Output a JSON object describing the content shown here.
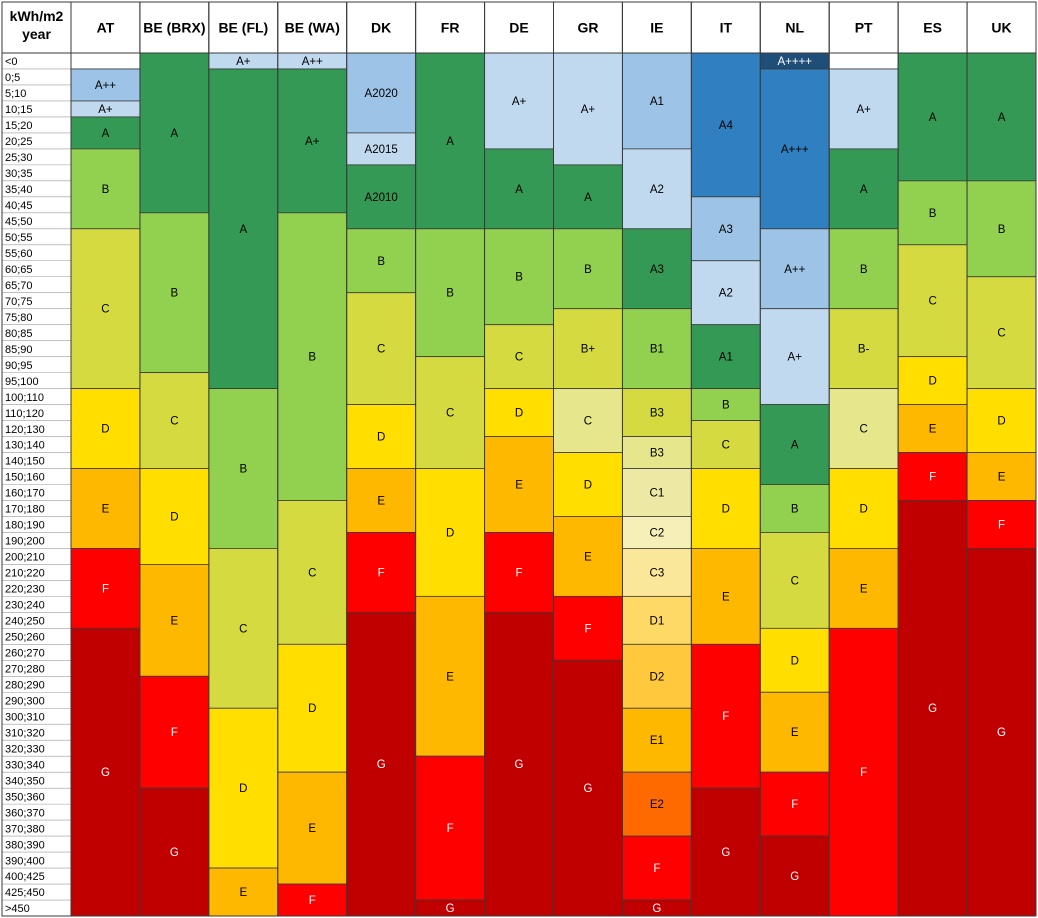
{
  "chart_data": {
    "type": "table",
    "corner_header": [
      "kWh/m2",
      "year"
    ],
    "rows": [
      "<0",
      "0;5",
      "5;10",
      "10;15",
      "15;20",
      "20;25",
      "25;30",
      "30;35",
      "35;40",
      "40;45",
      "45;50",
      "50;55",
      "55;60",
      "60;65",
      "65;70",
      "70;75",
      "75;80",
      "80;85",
      "85;90",
      "90;95",
      "95;100",
      "100;110",
      "110;120",
      "120;130",
      "130;140",
      "140;150",
      "150;160",
      "160;170",
      "170;180",
      "180;190",
      "190;200",
      "200;210",
      "210;220",
      "220;230",
      "230;240",
      "240;250",
      "250;260",
      "260;270",
      "270;280",
      "280;290",
      "290;300",
      "300;310",
      "310;320",
      "320;330",
      "330;340",
      "340;350",
      "350;360",
      "360;370",
      "370;380",
      "380;390",
      "390;400",
      "400;425",
      "425;450",
      ">450"
    ],
    "colors": {
      "A4": "#2F7FC1",
      "A++++": "#1F4E79",
      "A+++": "#2F7FC1",
      "lightblue": "#C0D9EE",
      "midblue": "#9DC3E6",
      "darkgreen": "#339954",
      "lightgreen": "#92D050",
      "yellowgreen": "#D4DA3F",
      "yellow": "#FFDE00",
      "orange": "#FFB800",
      "red": "#FF0000",
      "darkred": "#C00000",
      "paleyellow": "#E6E68C",
      "cream1": "#EEE8A5",
      "cream2": "#F6F0B8",
      "cream3": "#FBE79A",
      "gold1": "#FFD966",
      "gold2": "#FFC83D",
      "deeporange": "#FF6A00"
    },
    "countries": [
      {
        "name": "AT",
        "bands": [
          {
            "label": "",
            "from": 0,
            "to": 1,
            "color": "#ffffff"
          },
          {
            "label": "A++",
            "from": 1,
            "to": 3,
            "color": "#9DC3E6"
          },
          {
            "label": "A+",
            "from": 3,
            "to": 4,
            "color": "#C0D9EE"
          },
          {
            "label": "A",
            "from": 4,
            "to": 6,
            "color": "#339954"
          },
          {
            "label": "B",
            "from": 6,
            "to": 11,
            "color": "#92D050"
          },
          {
            "label": "C",
            "from": 11,
            "to": 21,
            "color": "#D4DA3F"
          },
          {
            "label": "D",
            "from": 21,
            "to": 26,
            "color": "#FFDE00"
          },
          {
            "label": "E",
            "from": 26,
            "to": 31,
            "color": "#FFB800"
          },
          {
            "label": "F",
            "from": 31,
            "to": 36,
            "color": "#FF0000"
          },
          {
            "label": "G",
            "from": 36,
            "to": 54,
            "color": "#C00000"
          }
        ]
      },
      {
        "name": "BE (BRX)",
        "bands": [
          {
            "label": "A",
            "from": 0,
            "to": 10,
            "color": "#339954"
          },
          {
            "label": "B",
            "from": 10,
            "to": 20,
            "color": "#92D050"
          },
          {
            "label": "C",
            "from": 20,
            "to": 26,
            "color": "#D4DA3F"
          },
          {
            "label": "D",
            "from": 26,
            "to": 32,
            "color": "#FFDE00"
          },
          {
            "label": "E",
            "from": 32,
            "to": 39,
            "color": "#FFB800"
          },
          {
            "label": "F",
            "from": 39,
            "to": 46,
            "color": "#FF0000"
          },
          {
            "label": "G",
            "from": 46,
            "to": 54,
            "color": "#C00000"
          }
        ]
      },
      {
        "name": "BE (FL)",
        "bands": [
          {
            "label": "A+",
            "from": 0,
            "to": 1,
            "color": "#C0D9EE"
          },
          {
            "label": "A",
            "from": 1,
            "to": 21,
            "color": "#339954"
          },
          {
            "label": "B",
            "from": 21,
            "to": 31,
            "color": "#92D050"
          },
          {
            "label": "C",
            "from": 31,
            "to": 41,
            "color": "#D4DA3F"
          },
          {
            "label": "D",
            "from": 41,
            "to": 51,
            "color": "#FFDE00"
          },
          {
            "label": "E",
            "from": 51,
            "to": 54,
            "color": "#FFB800"
          }
        ]
      },
      {
        "name": "BE (WA)",
        "bands": [
          {
            "label": "A++",
            "from": 0,
            "to": 1,
            "color": "#C0D9EE"
          },
          {
            "label": "A+",
            "from": 1,
            "to": 10,
            "color": "#339954"
          },
          {
            "label": "B",
            "from": 10,
            "to": 28,
            "color": "#92D050"
          },
          {
            "label": "C",
            "from": 28,
            "to": 37,
            "color": "#D4DA3F"
          },
          {
            "label": "D",
            "from": 37,
            "to": 45,
            "color": "#FFDE00"
          },
          {
            "label": "E",
            "from": 45,
            "to": 52,
            "color": "#FFB800"
          },
          {
            "label": "F",
            "from": 52,
            "to": 54,
            "color": "#FF0000"
          }
        ]
      },
      {
        "name": "DK",
        "bands": [
          {
            "label": "A2020",
            "from": 0,
            "to": 5,
            "color": "#9DC3E6"
          },
          {
            "label": "A2015",
            "from": 5,
            "to": 7,
            "color": "#C0D9EE"
          },
          {
            "label": "A2010",
            "from": 7,
            "to": 11,
            "color": "#339954"
          },
          {
            "label": "B",
            "from": 11,
            "to": 15,
            "color": "#92D050"
          },
          {
            "label": "C",
            "from": 15,
            "to": 22,
            "color": "#D4DA3F"
          },
          {
            "label": "D",
            "from": 22,
            "to": 26,
            "color": "#FFDE00"
          },
          {
            "label": "E",
            "from": 26,
            "to": 30,
            "color": "#FFB800"
          },
          {
            "label": "F",
            "from": 30,
            "to": 35,
            "color": "#FF0000"
          },
          {
            "label": "G",
            "from": 35,
            "to": 54,
            "color": "#C00000"
          }
        ]
      },
      {
        "name": "FR",
        "bands": [
          {
            "label": "A",
            "from": 0,
            "to": 11,
            "color": "#339954"
          },
          {
            "label": "B",
            "from": 11,
            "to": 19,
            "color": "#92D050"
          },
          {
            "label": "C",
            "from": 19,
            "to": 26,
            "color": "#D4DA3F"
          },
          {
            "label": "D",
            "from": 26,
            "to": 34,
            "color": "#FFDE00"
          },
          {
            "label": "E",
            "from": 34,
            "to": 44,
            "color": "#FFB800"
          },
          {
            "label": "F",
            "from": 44,
            "to": 53,
            "color": "#FF0000"
          },
          {
            "label": "G",
            "from": 53,
            "to": 54,
            "color": "#C00000"
          }
        ]
      },
      {
        "name": "DE",
        "bands": [
          {
            "label": "A+",
            "from": 0,
            "to": 6,
            "color": "#C0D9EE"
          },
          {
            "label": "A",
            "from": 6,
            "to": 11,
            "color": "#339954"
          },
          {
            "label": "B",
            "from": 11,
            "to": 17,
            "color": "#92D050"
          },
          {
            "label": "C",
            "from": 17,
            "to": 21,
            "color": "#D4DA3F"
          },
          {
            "label": "D",
            "from": 21,
            "to": 24,
            "color": "#FFDE00"
          },
          {
            "label": "E",
            "from": 24,
            "to": 30,
            "color": "#FFB800"
          },
          {
            "label": "F",
            "from": 30,
            "to": 35,
            "color": "#FF0000"
          },
          {
            "label": "G",
            "from": 35,
            "to": 54,
            "color": "#C00000"
          }
        ]
      },
      {
        "name": "GR",
        "bands": [
          {
            "label": "A+",
            "from": 0,
            "to": 7,
            "color": "#C0D9EE"
          },
          {
            "label": "A",
            "from": 7,
            "to": 11,
            "color": "#339954"
          },
          {
            "label": "B",
            "from": 11,
            "to": 16,
            "color": "#92D050"
          },
          {
            "label": "B+",
            "from": 16,
            "to": 21,
            "color": "#D4DA3F"
          },
          {
            "label": "C",
            "from": 21,
            "to": 25,
            "color": "#E6E68C"
          },
          {
            "label": "D",
            "from": 25,
            "to": 29,
            "color": "#FFDE00"
          },
          {
            "label": "E",
            "from": 29,
            "to": 34,
            "color": "#FFB800"
          },
          {
            "label": "F",
            "from": 34,
            "to": 38,
            "color": "#FF0000"
          },
          {
            "label": "G",
            "from": 38,
            "to": 54,
            "color": "#C00000"
          }
        ]
      },
      {
        "name": "IE",
        "bands": [
          {
            "label": "A1",
            "from": 0,
            "to": 6,
            "color": "#9DC3E6"
          },
          {
            "label": "A2",
            "from": 6,
            "to": 11,
            "color": "#C0D9EE"
          },
          {
            "label": "A3",
            "from": 11,
            "to": 16,
            "color": "#339954"
          },
          {
            "label": "B1",
            "from": 16,
            "to": 21,
            "color": "#92D050"
          },
          {
            "label": "B3",
            "from": 21,
            "to": 24,
            "color": "#D4DA3F"
          },
          {
            "label": "B3",
            "from": 24,
            "to": 26,
            "color": "#E6E68C"
          },
          {
            "label": "C1",
            "from": 26,
            "to": 29,
            "color": "#EEE8A5"
          },
          {
            "label": "C2",
            "from": 29,
            "to": 31,
            "color": "#F6F0B8"
          },
          {
            "label": "C3",
            "from": 31,
            "to": 34,
            "color": "#FBE79A"
          },
          {
            "label": "D1",
            "from": 34,
            "to": 37,
            "color": "#FFD966"
          },
          {
            "label": "D2",
            "from": 37,
            "to": 41,
            "color": "#FFC83D"
          },
          {
            "label": "E1",
            "from": 41,
            "to": 45,
            "color": "#FFB800"
          },
          {
            "label": "E2",
            "from": 45,
            "to": 49,
            "color": "#FF6A00"
          },
          {
            "label": "F",
            "from": 49,
            "to": 53,
            "color": "#FF0000"
          },
          {
            "label": "G",
            "from": 53,
            "to": 54,
            "color": "#C00000"
          }
        ]
      },
      {
        "name": "IT",
        "bands": [
          {
            "label": "A4",
            "from": 0,
            "to": 9,
            "color": "#2F7FC1"
          },
          {
            "label": "A3",
            "from": 9,
            "to": 13,
            "color": "#9DC3E6"
          },
          {
            "label": "A2",
            "from": 13,
            "to": 17,
            "color": "#C0D9EE"
          },
          {
            "label": "A1",
            "from": 17,
            "to": 21,
            "color": "#339954"
          },
          {
            "label": "B",
            "from": 21,
            "to": 23,
            "color": "#92D050"
          },
          {
            "label": "C",
            "from": 23,
            "to": 26,
            "color": "#D4DA3F"
          },
          {
            "label": "D",
            "from": 26,
            "to": 31,
            "color": "#FFDE00"
          },
          {
            "label": "E",
            "from": 31,
            "to": 37,
            "color": "#FFB800"
          },
          {
            "label": "F",
            "from": 37,
            "to": 46,
            "color": "#FF0000"
          },
          {
            "label": "G",
            "from": 46,
            "to": 54,
            "color": "#C00000"
          }
        ]
      },
      {
        "name": "NL",
        "bands": [
          {
            "label": "A++++",
            "from": 0,
            "to": 1,
            "color": "#1F4E79"
          },
          {
            "label": "A+++",
            "from": 1,
            "to": 11,
            "color": "#2F7FC1"
          },
          {
            "label": "A++",
            "from": 11,
            "to": 16,
            "color": "#9DC3E6"
          },
          {
            "label": "A+",
            "from": 16,
            "to": 22,
            "color": "#C0D9EE"
          },
          {
            "label": "A",
            "from": 22,
            "to": 27,
            "color": "#339954"
          },
          {
            "label": "B",
            "from": 27,
            "to": 30,
            "color": "#92D050"
          },
          {
            "label": "C",
            "from": 30,
            "to": 36,
            "color": "#D4DA3F"
          },
          {
            "label": "D",
            "from": 36,
            "to": 40,
            "color": "#FFDE00"
          },
          {
            "label": "E",
            "from": 40,
            "to": 45,
            "color": "#FFB800"
          },
          {
            "label": "F",
            "from": 45,
            "to": 49,
            "color": "#FF0000"
          },
          {
            "label": "G",
            "from": 49,
            "to": 54,
            "color": "#C00000"
          }
        ]
      },
      {
        "name": "PT",
        "bands": [
          {
            "label": "",
            "from": 0,
            "to": 1,
            "color": "#ffffff"
          },
          {
            "label": "A+",
            "from": 1,
            "to": 6,
            "color": "#C0D9EE"
          },
          {
            "label": "A",
            "from": 6,
            "to": 11,
            "color": "#339954"
          },
          {
            "label": "B",
            "from": 11,
            "to": 16,
            "color": "#92D050"
          },
          {
            "label": "B-",
            "from": 16,
            "to": 21,
            "color": "#D4DA3F"
          },
          {
            "label": "C",
            "from": 21,
            "to": 26,
            "color": "#E6E68C"
          },
          {
            "label": "D",
            "from": 26,
            "to": 31,
            "color": "#FFDE00"
          },
          {
            "label": "E",
            "from": 31,
            "to": 36,
            "color": "#FFB800"
          },
          {
            "label": "F",
            "from": 36,
            "to": 54,
            "color": "#FF0000"
          }
        ]
      },
      {
        "name": "ES",
        "bands": [
          {
            "label": "A",
            "from": 0,
            "to": 8,
            "color": "#339954"
          },
          {
            "label": "B",
            "from": 8,
            "to": 12,
            "color": "#92D050"
          },
          {
            "label": "C",
            "from": 12,
            "to": 19,
            "color": "#D4DA3F"
          },
          {
            "label": "D",
            "from": 19,
            "to": 22,
            "color": "#FFDE00"
          },
          {
            "label": "E",
            "from": 22,
            "to": 25,
            "color": "#FFB800"
          },
          {
            "label": "F",
            "from": 25,
            "to": 28,
            "color": "#FF0000"
          },
          {
            "label": "G",
            "from": 28,
            "to": 54,
            "color": "#C00000"
          }
        ]
      },
      {
        "name": "UK",
        "bands": [
          {
            "label": "A",
            "from": 0,
            "to": 8,
            "color": "#339954"
          },
          {
            "label": "B",
            "from": 8,
            "to": 14,
            "color": "#92D050"
          },
          {
            "label": "C",
            "from": 14,
            "to": 21,
            "color": "#D4DA3F"
          },
          {
            "label": "D",
            "from": 21,
            "to": 25,
            "color": "#FFDE00"
          },
          {
            "label": "E",
            "from": 25,
            "to": 28,
            "color": "#FFB800"
          },
          {
            "label": "F",
            "from": 28,
            "to": 31,
            "color": "#FF0000"
          },
          {
            "label": "G",
            "from": 31,
            "to": 54,
            "color": "#C00000"
          }
        ]
      }
    ]
  }
}
